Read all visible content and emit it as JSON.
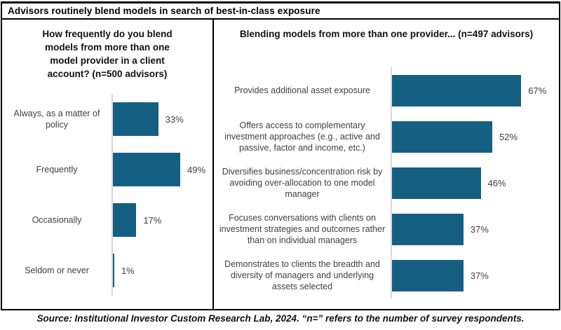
{
  "header": {
    "title": "Advisors routinely blend models in search of best-in-class exposure"
  },
  "source_note": "Source: Institutional Investor Custom Research Lab, 2024. “n=” refers to the number of survey respondents.",
  "colors": {
    "bar": "#156082",
    "axis": "#d9d9d9",
    "border": "#000000",
    "label_text": "#404040"
  },
  "chart_data": [
    {
      "type": "bar",
      "orientation": "horizontal",
      "title": "How frequently do you blend models from more than one model provider in a client account? (n=500 advisors)",
      "categories": [
        "Always, as a matter of policy",
        "Frequently",
        "Occasionally",
        "Seldom or never"
      ],
      "values": [
        33,
        49,
        17,
        1
      ],
      "data_labels": [
        "33%",
        "49%",
        "17%",
        "1%"
      ],
      "unit": "%",
      "xlim": [
        0,
        100
      ],
      "grid": false,
      "legend": "none"
    },
    {
      "type": "bar",
      "orientation": "horizontal",
      "title": "Blending models from more than one provider... (n=497 advisors)",
      "categories": [
        "Provides additional asset exposure",
        "Offers access to complementary investment approaches (e.g., active and passive, factor and income, etc.)",
        "Diversifies business/concentration risk by avoiding over-allocation to one model manager",
        "Focuses conversations with clients on investment strategies and outcomes rather than on individual managers",
        "Demonstrates to clients the breadth and diversity of managers and underlying assets selected"
      ],
      "values": [
        67,
        52,
        46,
        37,
        37
      ],
      "data_labels": [
        "67%",
        "52%",
        "46%",
        "37%",
        "37%"
      ],
      "unit": "%",
      "xlim": [
        0,
        100
      ],
      "grid": false,
      "legend": "none"
    }
  ]
}
